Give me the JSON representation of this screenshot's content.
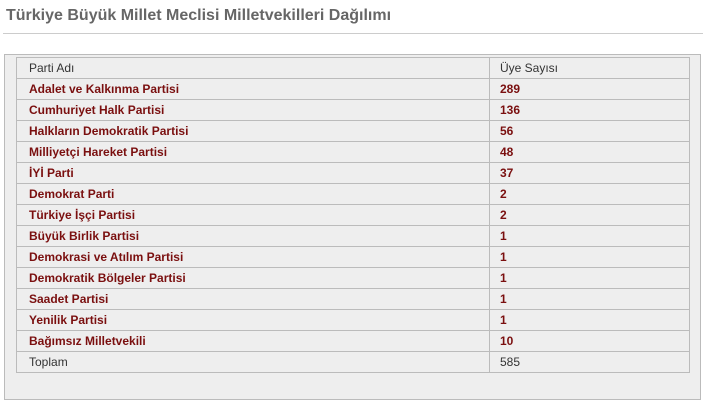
{
  "title": "Türkiye Büyük Millet Meclisi Milletvekilleri Dağılımı",
  "table": {
    "headers": [
      "Parti Adı",
      "Üye Sayısı"
    ],
    "rows": [
      {
        "name": "Adalet ve Kalkınma Partisi",
        "count": "289"
      },
      {
        "name": "Cumhuriyet Halk Partisi",
        "count": "136"
      },
      {
        "name": "Halkların Demokratik Partisi",
        "count": "56"
      },
      {
        "name": "Milliyetçi Hareket Partisi",
        "count": "48"
      },
      {
        "name": "İYİ Parti",
        "count": "37"
      },
      {
        "name": "Demokrat Parti",
        "count": "2"
      },
      {
        "name": "Türkiye İşçi Partisi",
        "count": "2"
      },
      {
        "name": "Büyük Birlik Partisi",
        "count": "1"
      },
      {
        "name": "Demokrasi ve Atılım Partisi",
        "count": "1"
      },
      {
        "name": "Demokratik Bölgeler Partisi",
        "count": "1"
      },
      {
        "name": "Saadet Partisi",
        "count": "1"
      },
      {
        "name": "Yenilik Partisi",
        "count": "1"
      },
      {
        "name": "Bağımsız Milletvekili",
        "count": "10"
      }
    ],
    "total": {
      "label": "Toplam",
      "count": "585"
    }
  }
}
